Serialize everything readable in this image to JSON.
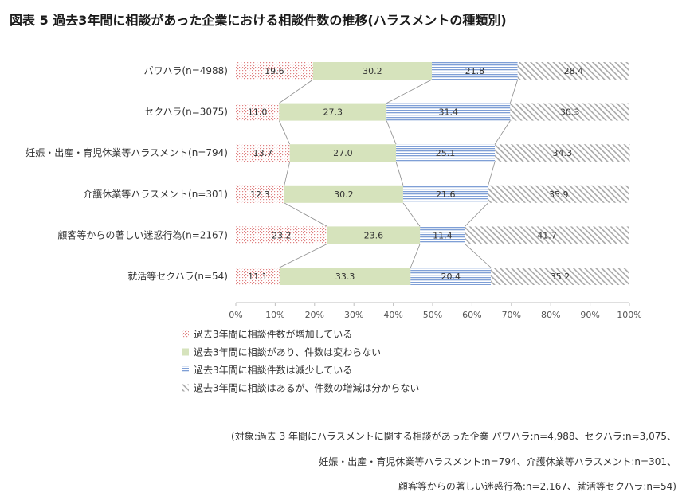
{
  "page": {
    "title": "図表 5 過去3年間に相談があった企業における相談件数の推移(ハラスメントの種類別)"
  },
  "chart_data": {
    "type": "bar",
    "orientation": "horizontal",
    "stacked": true,
    "percent_axis": true,
    "categories": [
      "パワハラ(n=4988)",
      "セクハラ(n=3075)",
      "妊娠・出産・育児休業等ハラスメント(n=794)",
      "介護休業等ハラスメント(n=301)",
      "顧客等からの著しい迷惑行為(n=2167)",
      "就活等セクハラ(n=54)"
    ],
    "series": [
      {
        "name": "過去3年間に相談件数が増加している",
        "values": [
          19.6,
          11.0,
          13.7,
          12.3,
          23.2,
          11.1
        ],
        "pattern": "dots",
        "color": "#e8a0a0"
      },
      {
        "name": "過去3年間に相談があり、件数は変わらない",
        "values": [
          30.2,
          27.3,
          27.0,
          30.2,
          23.6,
          33.3
        ],
        "pattern": "solid",
        "color": "#d6e3bc"
      },
      {
        "name": "過去3年間に相談件数は減少している",
        "values": [
          21.8,
          31.4,
          25.1,
          21.6,
          11.4,
          20.4
        ],
        "pattern": "hlines",
        "color": "#8eaadb"
      },
      {
        "name": "過去3年間に相談はあるが、件数の増減は分からない",
        "values": [
          28.4,
          30.3,
          34.3,
          35.9,
          41.7,
          35.2
        ],
        "pattern": "diagonal",
        "color": "#b0b0b0"
      }
    ],
    "value_labels": [
      [
        "19.6",
        "30.2",
        "21.8",
        "28.4"
      ],
      [
        "11.0",
        "27.3",
        "31.4",
        "30.3"
      ],
      [
        "13.7",
        "27.0",
        "25.1",
        "34.3"
      ],
      [
        "12.3",
        "30.2",
        "21.6",
        "35.9"
      ],
      [
        "23.2",
        "23.6",
        "11.4",
        "41.7"
      ],
      [
        "11.1",
        "33.3",
        "20.4",
        "35.2"
      ]
    ],
    "x_ticks": [
      "0%",
      "10%",
      "20%",
      "30%",
      "40%",
      "50%",
      "60%",
      "70%",
      "80%",
      "90%",
      "100%"
    ],
    "xlim": [
      0,
      100
    ],
    "series_lines": true,
    "grid": false,
    "legend_position": "bottom"
  },
  "notes": [
    "(対象:過去 3 年間にハラスメントに関する相談があった企業 パワハラ:n=4,988、セクハラ:n=3,075、",
    "妊娠・出産・育児休業等ハラスメント:n=794、介護休業等ハラスメント:n=301、",
    "顧客等からの著しい迷惑行為:n=2,167、就活等セクハラ:n=54)"
  ]
}
